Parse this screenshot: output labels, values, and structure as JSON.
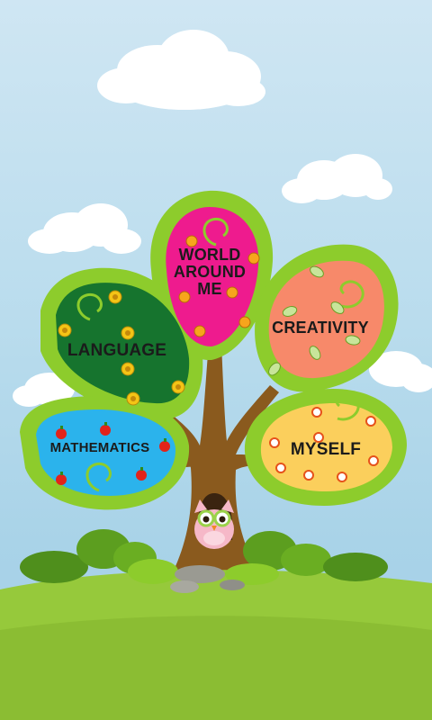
{
  "branches": [
    {
      "id": "world",
      "label": "WORLD\nAROUND\nME",
      "color": "#ee1b8e"
    },
    {
      "id": "creativity",
      "label": "CREATIVITY",
      "color": "#f7896a"
    },
    {
      "id": "language",
      "label": "LANGUAGE",
      "color": "#16742e"
    },
    {
      "id": "mathematics",
      "label": "MATHEMATICS",
      "color": "#2bb3ec"
    },
    {
      "id": "myself",
      "label": "MYSELF",
      "color": "#fbcf5c"
    }
  ],
  "colors": {
    "leaf_frame": "#8dcc2c",
    "grass": "#96c93b",
    "trunk": "#8a5a1e",
    "bush": "#5c9e1f"
  },
  "icons": {
    "language": "sunflower-icon",
    "mathematics": "apple-icon",
    "world": "honey-pot-icon",
    "creativity": "leaf-icon",
    "myself": "flower-icon",
    "character": "owl-icon"
  }
}
